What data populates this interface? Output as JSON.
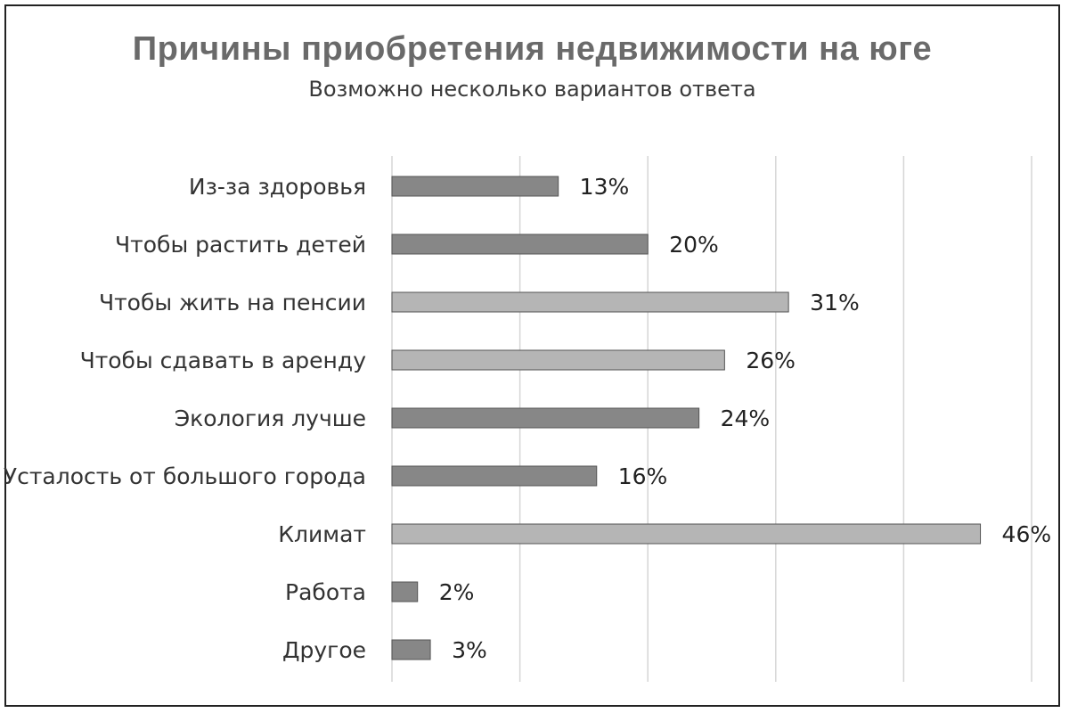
{
  "chart_data": {
    "type": "bar",
    "orientation": "horizontal",
    "title": "Причины приобретения недвижимости на юге",
    "subtitle": "Возможно несколько вариантов ответа",
    "categories": [
      "Из-за здоровья",
      "Чтобы растить детей",
      "Чтобы жить на пенсии",
      "Чтобы сдавать в аренду",
      "Экология лучше",
      "Усталость от большого города",
      "Климат",
      "Работа",
      "Другое"
    ],
    "values": [
      13,
      20,
      31,
      26,
      24,
      16,
      46,
      2,
      3
    ],
    "value_labels": [
      "13%",
      "20%",
      "31%",
      "26%",
      "24%",
      "16%",
      "46%",
      "2%",
      "3%"
    ],
    "bar_shades": [
      "dark",
      "dark",
      "light",
      "light",
      "dark",
      "dark",
      "light",
      "dark",
      "dark"
    ],
    "colors": {
      "dark": "#878787",
      "light": "#b5b5b5",
      "grid": "#d6d6d6"
    },
    "xlim": [
      0,
      50
    ],
    "x_gridlines": [
      0,
      10,
      20,
      30,
      40,
      50
    ],
    "grid": true,
    "xlabel": "",
    "ylabel": ""
  }
}
